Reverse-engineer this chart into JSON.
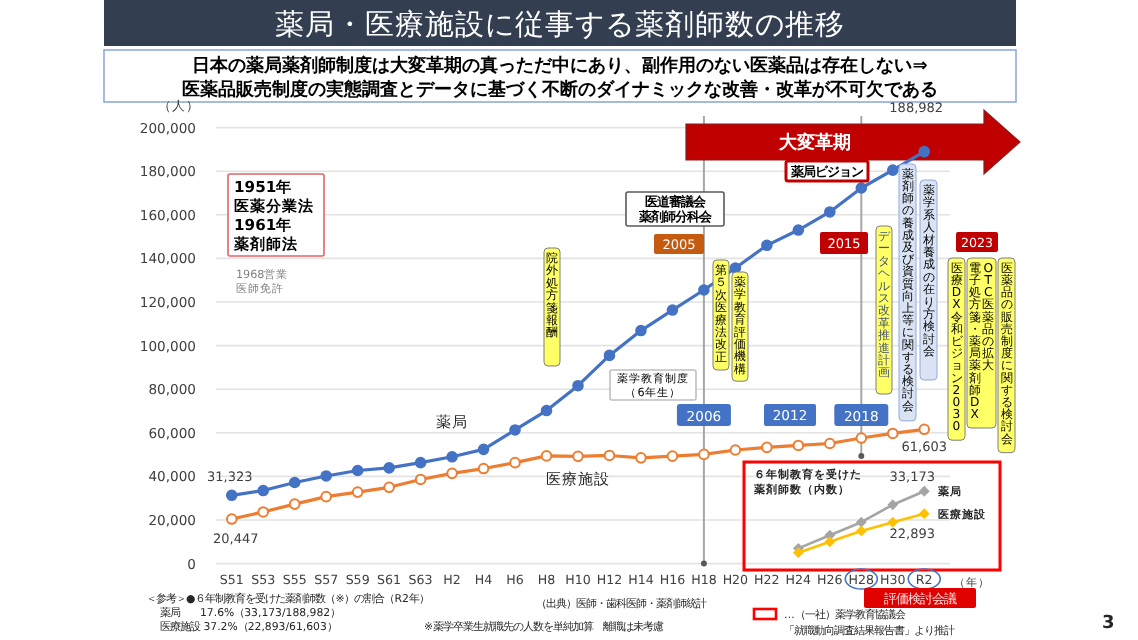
{
  "chart_data": [
    {
      "type": "line",
      "title": "薬局・医療施設に従事する薬剤師数の推移",
      "subtitle": "日本の薬局薬剤師制度は大変革期の真っただ中にあり、副作用のない医薬品は存在しない⇒\n医薬品販売制度の実態調査とデータに基づく不断のダイナミックな改善・改革が不可欠である",
      "ylabel": "（人）",
      "xlabel": "（年）",
      "categories": [
        "S51",
        "S53",
        "S55",
        "S57",
        "S59",
        "S61",
        "S63",
        "H2",
        "H4",
        "H6",
        "H8",
        "H10",
        "H12",
        "H14",
        "H16",
        "H18",
        "H20",
        "H22",
        "H24",
        "H26",
        "H28",
        "H30",
        "R2"
      ],
      "ylim": [
        0,
        200000
      ],
      "yticks": [
        0,
        {
          "value": 20000,
          "label": "20,000"
        },
        {
          "value": 40000,
          "label": "40,000"
        },
        {
          "value": 60000,
          "label": "60,000"
        },
        {
          "value": 80000,
          "label": "80,000"
        },
        {
          "value": 100000,
          "label": "100,000"
        },
        {
          "value": 120000,
          "label": "120,000"
        },
        {
          "value": 140000,
          "label": "140,000"
        },
        {
          "value": 160000,
          "label": "160,000"
        },
        {
          "value": 180000,
          "label": "180,000"
        },
        {
          "value": 200000,
          "label": "200,000"
        }
      ],
      "grid": "y",
      "marker": "circle",
      "series": [
        {
          "name": "薬局",
          "color": "#4472c4",
          "values": [
            31323,
            33500,
            37200,
            40200,
            42700,
            43900,
            46300,
            49000,
            52400,
            61300,
            70200,
            81600,
            95500,
            106900,
            116300,
            125500,
            135600,
            146000,
            153000,
            161300,
            172300,
            180500,
            188982
          ],
          "value_labels": [
            "31,323",
            null,
            null,
            null,
            null,
            null,
            null,
            null,
            null,
            null,
            null,
            null,
            null,
            null,
            null,
            null,
            null,
            null,
            null,
            null,
            null,
            null,
            "188,982"
          ]
        },
        {
          "name": "医療施設",
          "color": "#ed7d31",
          "values": [
            20447,
            23700,
            27300,
            30700,
            32800,
            35000,
            38600,
            41400,
            43600,
            46300,
            49400,
            49200,
            49600,
            48500,
            49300,
            50100,
            52100,
            53300,
            54200,
            55100,
            57600,
            59700,
            61603
          ],
          "value_labels": [
            "20,447",
            null,
            null,
            null,
            null,
            null,
            null,
            null,
            null,
            null,
            null,
            null,
            null,
            null,
            null,
            null,
            null,
            null,
            null,
            null,
            null,
            null,
            "61,603"
          ]
        },
        {
          "name": "薬局",
          "color": "#a5a5a5",
          "marker": "diamond",
          "x": [
            "H24",
            "H26",
            "H28",
            "H30",
            "R2"
          ],
          "values": [
            7000,
            13000,
            19000,
            27000,
            33173
          ],
          "value_labels": [
            null,
            null,
            null,
            null,
            "33,173"
          ]
        },
        {
          "name": "医療施設",
          "color": "#ffc000",
          "marker": "diamond",
          "x": [
            "H24",
            "H26",
            "H28",
            "H30",
            "R2"
          ],
          "values": [
            5000,
            10000,
            15000,
            19000,
            22893
          ],
          "value_labels": [
            null,
            null,
            null,
            null,
            "22,893"
          ]
        }
      ],
      "ref_lines": [
        {
          "axis": "x",
          "value": "H18",
          "label": "2006",
          "color": "#a6a6a6"
        },
        {
          "axis": "x",
          "value": "H28",
          "label": "2018",
          "color": "#a6a6a6"
        }
      ],
      "annotations": [
        "大変革期",
        "1951年医薬分業法1961年薬剤師法",
        "1968営業医師免許",
        "院外処方箋報酬",
        "医道審議会薬剤師分科会",
        "2005",
        "第５次医療法改正",
        "薬学教育評価機構",
        "薬学教育制度（6年生）",
        "2012",
        "薬局ビジョン",
        "2015",
        "データヘルス改革推進計画",
        "薬剤師の養成及び資質向上等に関する検討会",
        "薬学系人材養成の在り方検討会",
        "2023",
        "医療DX令和ビジョン2030",
        "OTC医薬品の拡大",
        "電子処方箋・薬局薬剤師DX",
        "医薬品の販売制度に関する検討会",
        "評価検討会議",
        "＜参考＞●６年制教育を受けた薬剤師数（※）の割合（R2年）",
        "薬局　　17.6%（33,173/188,982）",
        "医療施設 37.2%（22,893/61,603）",
        "（出典）医師・歯科医師・薬剤師統計",
        "※薬学卒業生就職先の人数を単純加算　離職は未考慮",
        "…（一社）薬学教育協議会「就職動向調査結果報告書」より推計",
        "3",
        "６年制教育を受けた薬剤師数（内数）"
      ]
    }
  ]
}
